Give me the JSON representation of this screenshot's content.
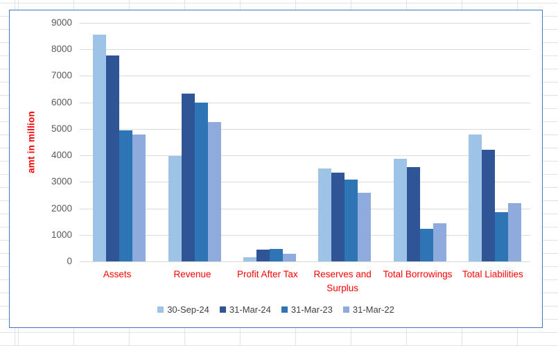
{
  "chart_data": {
    "type": "bar",
    "title": "",
    "ylabel": "amt in million",
    "xlabel": "",
    "ylim": [
      0,
      9000
    ],
    "yticks": [
      0,
      1000,
      2000,
      3000,
      4000,
      5000,
      6000,
      7000,
      8000,
      9000
    ],
    "grid": true,
    "legend_position": "bottom",
    "categories": [
      "Assets",
      "Revenue",
      "Profit After Tax",
      "Reserves and Surplus",
      "Total Borrowings",
      "Total Liabilities"
    ],
    "series": [
      {
        "name": "30-Sep-24",
        "color": "#9DC3E6",
        "values": [
          8550,
          3980,
          150,
          3510,
          3860,
          4800
        ]
      },
      {
        "name": "31-Mar-24",
        "color": "#2F5597",
        "values": [
          7780,
          6320,
          440,
          3340,
          3560,
          4210
        ]
      },
      {
        "name": "31-Mar-23",
        "color": "#2E75B6",
        "values": [
          4950,
          5980,
          480,
          3080,
          1220,
          1870
        ]
      },
      {
        "name": "31-Mar-22",
        "color": "#8FAADC",
        "values": [
          4800,
          5250,
          290,
          2590,
          1440,
          2190
        ]
      }
    ],
    "colors": {
      "axis_title": "#FF0000",
      "category_labels": "#FF0000",
      "tick_labels": "#595959",
      "legend_text": "#404040",
      "gridlines": "#D9D9D9",
      "chart_border": "#4472C4"
    }
  }
}
